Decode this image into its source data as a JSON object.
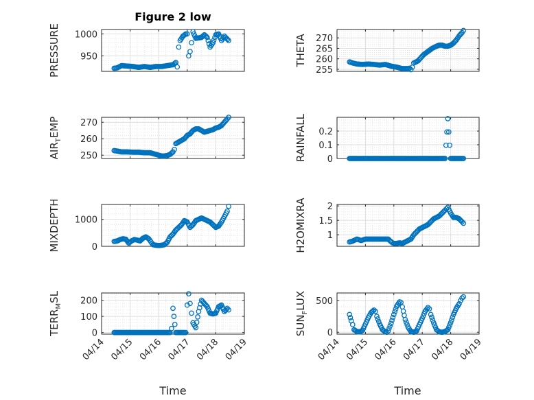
{
  "figure": {
    "title": "Figure 2 low",
    "marker_color": "#0072BD",
    "marker": "open-circle",
    "grid": "major+minor",
    "x_axis": {
      "label": "Time",
      "ticks": [
        "04/14",
        "04/15",
        "04/16",
        "04/17",
        "04/18",
        "04/19"
      ],
      "tick_days": [
        14,
        15,
        16,
        17,
        18,
        19
      ],
      "range_days": [
        14,
        19
      ]
    }
  },
  "chart_data": [
    {
      "type": "scatter",
      "ylabel_main": "PRESSURE",
      "ylabel_sub": "",
      "ylim": [
        915,
        1010
      ],
      "yticks": [
        950,
        1000
      ],
      "ytick_labels": [
        "950",
        "1000"
      ],
      "series": [
        {
          "x": [
            14.44,
            14.55,
            14.7,
            14.9,
            15.1,
            15.3,
            15.5,
            15.7,
            15.9,
            16.1,
            16.3,
            16.5,
            16.6,
            16.65,
            16.7,
            16.75,
            16.85,
            16.95,
            17.0,
            17.05,
            17.1,
            17.15,
            17.2,
            17.3,
            17.5,
            17.6,
            17.7,
            17.8,
            17.9,
            18.0,
            18.1,
            18.2,
            18.3,
            18.45
          ],
          "y": [
            922,
            923,
            928,
            927,
            926,
            924,
            926,
            924,
            926,
            926,
            928,
            930,
            935,
            925,
            970,
            985,
            995,
            1000,
            1000,
            950,
            960,
            980,
            1005,
            990,
            992,
            998,
            992,
            970,
            980,
            998,
            1000,
            985,
            995,
            985
          ]
        }
      ]
    },
    {
      "type": "scatter",
      "ylabel_main": "THETA",
      "ylabel_sub": "",
      "ylim": [
        254,
        274
      ],
      "yticks": [
        255,
        260,
        265,
        270
      ],
      "ytick_labels": [
        "255",
        "260",
        "265",
        "270"
      ],
      "series": [
        {
          "x": [
            14.44,
            14.55,
            14.7,
            14.9,
            15.1,
            15.3,
            15.5,
            15.7,
            15.9,
            16.1,
            16.3,
            16.5,
            16.55,
            16.6,
            16.65,
            16.7,
            16.75,
            16.85,
            16.95,
            17.05,
            17.15,
            17.25,
            17.35,
            17.5,
            17.6,
            17.7,
            17.8,
            17.9,
            18.0,
            18.1,
            18.2,
            18.3,
            18.4,
            18.45
          ],
          "y": [
            258.5,
            258,
            257.5,
            257.3,
            257.5,
            257.3,
            257,
            257.3,
            256.5,
            256,
            255.3,
            255.3,
            255.5,
            254.8,
            256,
            258,
            258.3,
            259,
            260.5,
            262,
            263,
            264,
            265,
            266,
            266.5,
            266.5,
            266,
            266,
            266.5,
            267.5,
            269,
            271,
            272.5,
            273.5
          ]
        }
      ]
    },
    {
      "type": "scatter",
      "ylabel_main": "AIR",
      "ylabel_sub": "T",
      "ylabel_tail": "EMP",
      "ylim": [
        248,
        273
      ],
      "yticks": [
        250,
        260,
        270
      ],
      "ytick_labels": [
        "250",
        "260",
        "270"
      ],
      "series": [
        {
          "x": [
            14.44,
            14.55,
            14.7,
            14.9,
            15.1,
            15.3,
            15.5,
            15.7,
            15.9,
            16.0,
            16.1,
            16.2,
            16.3,
            16.4,
            16.5,
            16.55,
            16.6,
            16.7,
            16.8,
            16.9,
            17.0,
            17.1,
            17.2,
            17.3,
            17.4,
            17.5,
            17.6,
            17.7,
            17.8,
            17.9,
            18.0,
            18.1,
            18.2,
            18.3,
            18.4,
            18.45
          ],
          "y": [
            252.8,
            252.5,
            252,
            252,
            251.8,
            251.8,
            251.5,
            251.5,
            250.5,
            250,
            249.5,
            249.5,
            249.8,
            250.5,
            252,
            253.5,
            257,
            258,
            259,
            260,
            262,
            263,
            265,
            266,
            266,
            265,
            264,
            264.5,
            265,
            265.5,
            266.5,
            267,
            268,
            270,
            272,
            273
          ]
        }
      ]
    },
    {
      "type": "scatter",
      "ylabel_main": "RAINFALL",
      "ylabel_sub": "",
      "ylim": [
        0,
        0.3
      ],
      "yticks": [
        0,
        0.1,
        0.2
      ],
      "ytick_labels": [
        "0",
        "0.1",
        "0.2"
      ],
      "series": [
        {
          "x": [
            14.44,
            14.6,
            14.8,
            15.0,
            15.2,
            15.4,
            15.6,
            15.8,
            16.0,
            16.2,
            16.4,
            16.6,
            16.8,
            17.0,
            17.2,
            17.4,
            17.6,
            17.8,
            17.9,
            18.0,
            18.2,
            18.45
          ],
          "y": [
            0,
            0,
            0,
            0,
            0,
            0,
            0,
            0,
            0,
            0,
            0,
            0,
            0,
            0,
            0,
            0,
            0,
            0,
            0.29,
            0,
            0,
            0
          ]
        }
      ]
    },
    {
      "type": "scatter",
      "ylabel_main": "MIXDEPTH",
      "ylabel_sub": "",
      "ylim": [
        0,
        1550
      ],
      "yticks": [
        0,
        1000
      ],
      "ytick_labels": [
        "0",
        "1000"
      ],
      "series": [
        {
          "x": [
            14.44,
            14.55,
            14.65,
            14.75,
            14.85,
            14.95,
            15.05,
            15.15,
            15.25,
            15.35,
            15.45,
            15.55,
            15.65,
            15.8,
            15.9,
            16.0,
            16.1,
            16.2,
            16.3,
            16.4,
            16.5,
            16.6,
            16.7,
            16.8,
            16.9,
            17.0,
            17.1,
            17.2,
            17.3,
            17.4,
            17.5,
            17.6,
            17.7,
            17.8,
            17.9,
            18.0,
            18.1,
            18.2,
            18.3,
            18.4,
            18.45
          ],
          "y": [
            180,
            200,
            250,
            280,
            260,
            120,
            200,
            250,
            230,
            200,
            300,
            350,
            280,
            60,
            40,
            30,
            40,
            60,
            150,
            350,
            450,
            600,
            700,
            800,
            950,
            900,
            700,
            800,
            950,
            1000,
            1050,
            1000,
            950,
            900,
            800,
            700,
            750,
            900,
            1100,
            1300,
            1480
          ]
        }
      ]
    },
    {
      "type": "scatter",
      "ylabel_main": "H2OMIXRA",
      "ylabel_sub": "",
      "ylim": [
        0.6,
        2.05
      ],
      "yticks": [
        1,
        1.5,
        2
      ],
      "ytick_labels": [
        "1",
        "1.5",
        "2"
      ],
      "series": [
        {
          "x": [
            14.44,
            14.55,
            14.7,
            14.85,
            15.0,
            15.2,
            15.4,
            15.6,
            15.8,
            15.95,
            16.0,
            16.1,
            16.2,
            16.3,
            16.4,
            16.5,
            16.6,
            16.7,
            16.8,
            16.9,
            17.0,
            17.1,
            17.2,
            17.3,
            17.4,
            17.5,
            17.6,
            17.7,
            17.8,
            17.85,
            17.9,
            18.0,
            18.1,
            18.2,
            18.3,
            18.4,
            18.45
          ],
          "y": [
            0.75,
            0.78,
            0.85,
            0.8,
            0.85,
            0.85,
            0.85,
            0.85,
            0.85,
            0.72,
            0.7,
            0.7,
            0.72,
            0.7,
            0.75,
            0.8,
            0.85,
            1.0,
            1.1,
            1.2,
            1.25,
            1.3,
            1.35,
            1.45,
            1.55,
            1.6,
            1.65,
            1.75,
            1.85,
            1.9,
            1.95,
            1.75,
            1.6,
            1.6,
            1.55,
            1.45,
            1.4
          ]
        }
      ]
    },
    {
      "type": "scatter",
      "ylabel_main": "TERR",
      "ylabel_sub": "M",
      "ylabel_tail": "SL",
      "ylim": [
        -10,
        245
      ],
      "yticks": [
        0,
        100,
        200
      ],
      "ytick_labels": [
        "0",
        "100",
        "200"
      ],
      "series": [
        {
          "x": [
            14.44,
            14.6,
            14.8,
            15.0,
            15.2,
            15.4,
            15.6,
            15.8,
            16.0,
            16.2,
            16.4,
            16.45,
            16.5,
            16.6,
            16.8,
            16.9,
            16.95,
            17.0,
            17.05,
            17.1,
            17.15,
            17.2,
            17.3,
            17.4,
            17.5,
            17.6,
            17.7,
            17.8,
            17.9,
            18.0,
            18.1,
            18.2,
            18.3,
            18.4,
            18.45
          ],
          "y": [
            0,
            0,
            0,
            0,
            0,
            0,
            0,
            0,
            0,
            0,
            0,
            25,
            150,
            0,
            0,
            0,
            0,
            170,
            240,
            180,
            120,
            60,
            30,
            130,
            200,
            180,
            160,
            120,
            115,
            120,
            160,
            170,
            130,
            150,
            140
          ]
        }
      ]
    },
    {
      "type": "scatter",
      "ylabel_main": "SUN",
      "ylabel_sub": "F",
      "ylabel_tail": "LUX",
      "ylim": [
        -30,
        620
      ],
      "yticks": [
        0,
        500
      ],
      "ytick_labels": [
        "0",
        "500"
      ],
      "series": [
        {
          "x": [
            14.44,
            14.5,
            14.55,
            14.6,
            14.7,
            14.8,
            14.9,
            15.0,
            15.1,
            15.2,
            15.3,
            15.35,
            15.4,
            15.5,
            15.6,
            15.7,
            15.75,
            15.8,
            15.9,
            16.0,
            16.1,
            16.2,
            16.25,
            16.3,
            16.4,
            16.5,
            16.6,
            16.7,
            16.8,
            16.9,
            17.0,
            17.1,
            17.2,
            17.25,
            17.3,
            17.4,
            17.5,
            17.6,
            17.7,
            17.8,
            17.9,
            18.0,
            18.1,
            18.2,
            18.3,
            18.35,
            18.4,
            18.45
          ],
          "y": [
            280,
            180,
            120,
            40,
            10,
            5,
            30,
            130,
            230,
            310,
            350,
            330,
            250,
            130,
            40,
            5,
            0,
            20,
            140,
            280,
            410,
            480,
            470,
            400,
            200,
            80,
            10,
            0,
            20,
            120,
            220,
            330,
            390,
            370,
            280,
            150,
            40,
            5,
            0,
            10,
            40,
            150,
            280,
            380,
            450,
            500,
            540,
            560
          ]
        }
      ]
    }
  ]
}
